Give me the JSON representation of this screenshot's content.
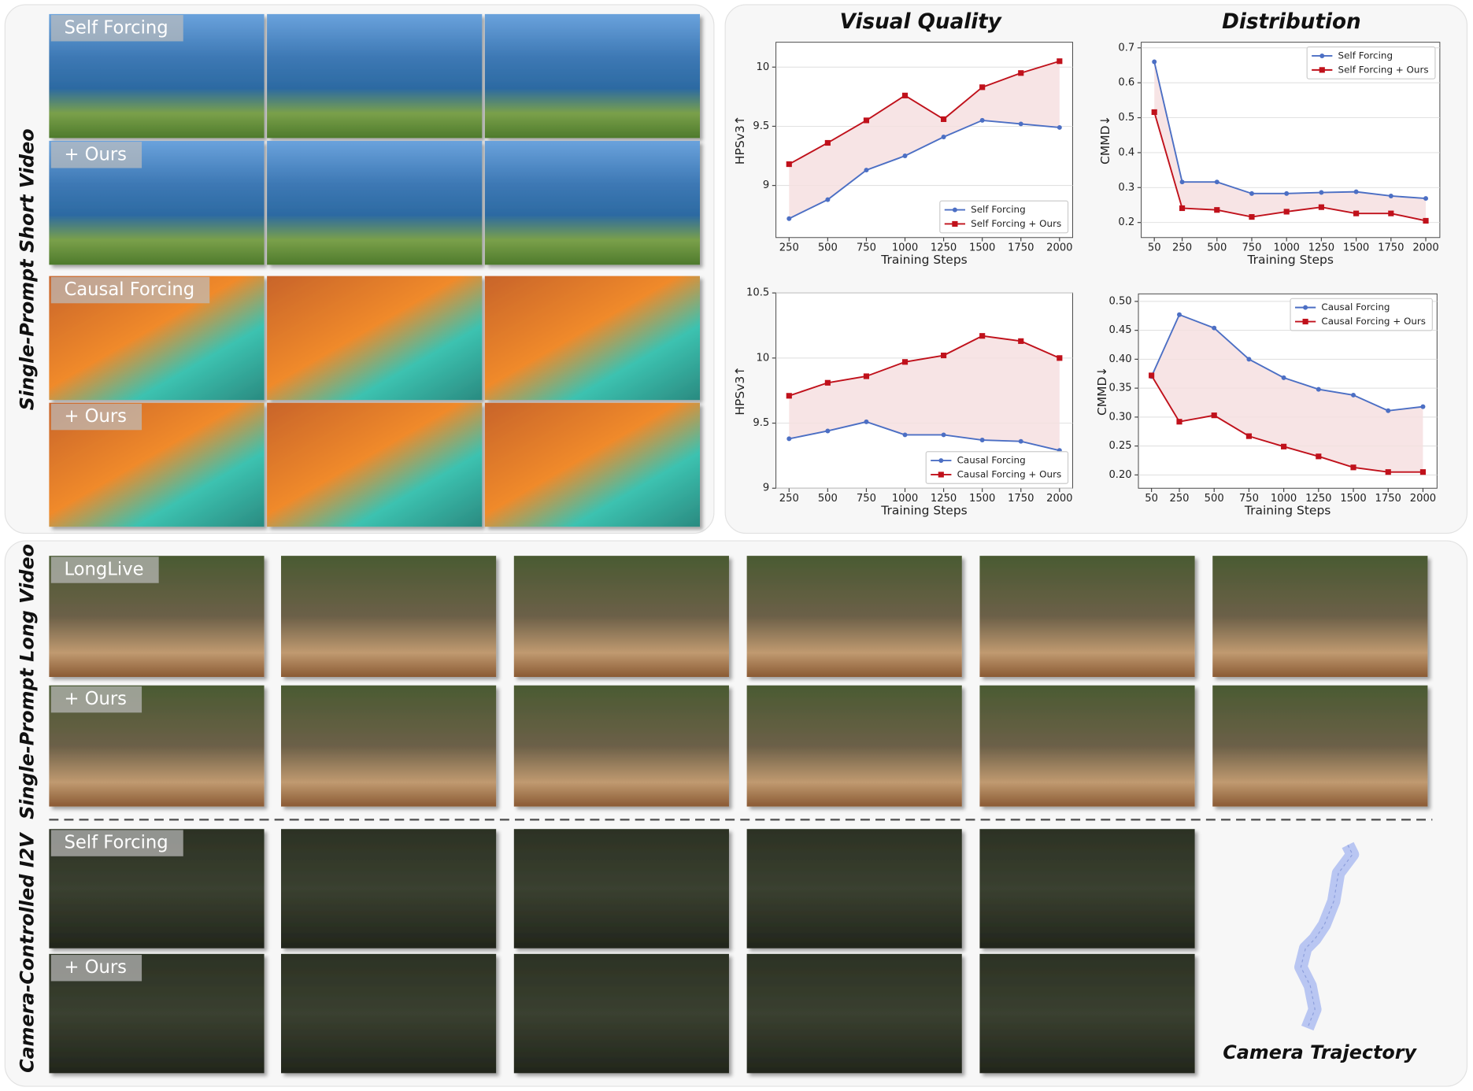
{
  "short_video": {
    "title": "Single-Prompt Short Video",
    "row_labels": [
      "Self Forcing",
      "+ Ours",
      "Causal Forcing",
      "+ Ours"
    ]
  },
  "long_video": {
    "title": "Single-Prompt Long Video",
    "row_labels": [
      "LongLive",
      "+ Ours"
    ]
  },
  "camera_video": {
    "title": "Camera-Controlled I2V",
    "row_labels": [
      "Self Forcing",
      "+ Ours"
    ],
    "trajectory_label": "Camera Trajectory"
  },
  "chart_data": [
    {
      "type": "line",
      "title": "Visual Quality",
      "x_label": "Training Steps",
      "y_label": "HPSv3↑",
      "x": [
        250,
        500,
        750,
        1000,
        1250,
        1500,
        1750,
        2000
      ],
      "xlim": [
        165,
        2085
      ],
      "xticks": [
        250,
        500,
        750,
        1000,
        1250,
        1500,
        1750,
        2000
      ],
      "ylim": [
        8.56,
        10.21
      ],
      "yticks": [
        9,
        9.5,
        10
      ],
      "grid": "y",
      "legend": "lower right",
      "fill_between": true,
      "fill_color": "#f6dfe1",
      "series": [
        {
          "name": "Self Forcing",
          "color": "#4c6fc4",
          "marker": "circle",
          "values": [
            8.72,
            8.88,
            9.13,
            9.25,
            9.41,
            9.55,
            9.52,
            9.49
          ]
        },
        {
          "name": "Self Forcing + Ours",
          "color": "#c0111b",
          "marker": "square",
          "values": [
            9.18,
            9.36,
            9.55,
            9.76,
            9.56,
            9.83,
            9.95,
            10.05
          ]
        }
      ]
    },
    {
      "type": "line",
      "title": "Distribution",
      "x_label": "Training Steps",
      "y_label": "CMMD↓",
      "x": [
        50,
        250,
        500,
        750,
        1000,
        1250,
        1500,
        1750,
        2000
      ],
      "xlim": [
        -44,
        2101
      ],
      "xticks": [
        50,
        250,
        500,
        750,
        1000,
        1250,
        1500,
        1750,
        2000
      ],
      "ylim": [
        0.157,
        0.716
      ],
      "yticks": [
        0.2,
        0.3,
        0.4,
        0.5,
        0.6,
        0.7
      ],
      "grid": "y",
      "legend": "upper right",
      "fill_between": true,
      "fill_color": "#f6dfe1",
      "series": [
        {
          "name": "Self Forcing",
          "color": "#4c6fc4",
          "marker": "circle",
          "values": [
            0.66,
            0.316,
            0.316,
            0.283,
            0.283,
            0.286,
            0.288,
            0.276,
            0.269
          ]
        },
        {
          "name": "Self Forcing + Ours",
          "color": "#c0111b",
          "marker": "square",
          "values": [
            0.516,
            0.241,
            0.236,
            0.216,
            0.231,
            0.244,
            0.226,
            0.226,
            0.205
          ]
        }
      ]
    },
    {
      "type": "line",
      "x_label": "Training Steps",
      "y_label": "HPSv3↑",
      "x": [
        250,
        500,
        750,
        1000,
        1250,
        1500,
        1750,
        2000
      ],
      "xlim": [
        165,
        2085
      ],
      "xticks": [
        250,
        500,
        750,
        1000,
        1250,
        1500,
        1750,
        2000
      ],
      "ylim": [
        9,
        10.5
      ],
      "yticks": [
        9,
        9.5,
        10,
        10.5
      ],
      "grid": "y",
      "legend": "lower right",
      "fill_between": true,
      "fill_color": "#f6dfe1",
      "series": [
        {
          "name": "Causal Forcing",
          "color": "#4c6fc4",
          "marker": "circle",
          "values": [
            9.38,
            9.44,
            9.51,
            9.41,
            9.41,
            9.37,
            9.36,
            9.29
          ]
        },
        {
          "name": "Causal Forcing + Ours",
          "color": "#c0111b",
          "marker": "square",
          "values": [
            9.71,
            9.81,
            9.86,
            9.97,
            10.02,
            10.17,
            10.13,
            10.0
          ]
        }
      ]
    },
    {
      "type": "line",
      "x_label": "Training Steps",
      "y_label": "CMMD↓",
      "x": [
        50,
        250,
        500,
        750,
        1000,
        1250,
        1500,
        1750,
        2000
      ],
      "xlim": [
        -44,
        2101
      ],
      "xticks": [
        50,
        250,
        500,
        750,
        1000,
        1250,
        1500,
        1750,
        2000
      ],
      "ylim": [
        0.177,
        0.513
      ],
      "yticks": [
        {
          "value": 0.2,
          "label": "0.20"
        },
        {
          "value": 0.25,
          "label": "0.25"
        },
        {
          "value": 0.3,
          "label": "0.30"
        },
        {
          "value": 0.35,
          "label": "0.35"
        },
        {
          "value": 0.4,
          "label": "0.40"
        },
        {
          "value": 0.45,
          "label": "0.45"
        },
        {
          "value": 0.5,
          "label": "0.50"
        }
      ],
      "grid": "y",
      "legend": "upper right",
      "fill_between": true,
      "fill_color": "#f6dfe1",
      "series": [
        {
          "name": "Causal Forcing",
          "color": "#4c6fc4",
          "marker": "circle",
          "values": [
            0.37,
            0.477,
            0.454,
            0.4,
            0.368,
            0.348,
            0.338,
            0.311,
            0.318
          ]
        },
        {
          "name": "Causal Forcing + Ours",
          "color": "#c0111b",
          "marker": "square",
          "values": [
            0.372,
            0.292,
            0.303,
            0.267,
            0.249,
            0.232,
            0.213,
            0.205,
            0.205
          ]
        }
      ]
    }
  ]
}
